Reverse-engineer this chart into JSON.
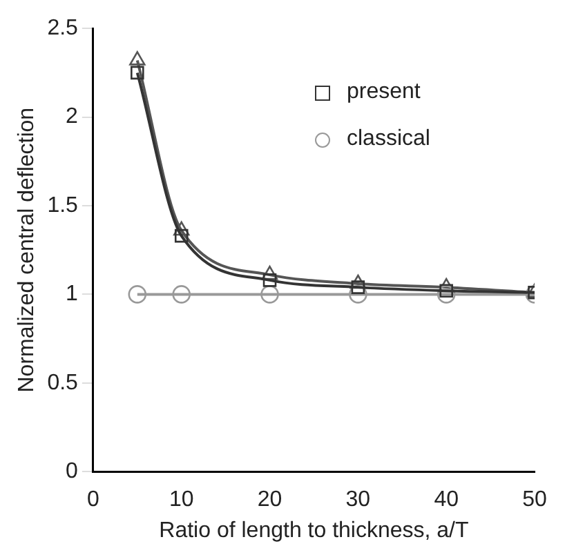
{
  "chart_data": {
    "type": "line",
    "xlabel": "Ratio of length to thickness, a/T",
    "ylabel": "Normalized central deflection",
    "x": [
      5,
      10,
      20,
      30,
      40,
      50
    ],
    "series": [
      {
        "name": "present",
        "color": "#333333",
        "marker": "square",
        "values": [
          2.25,
          1.33,
          1.08,
          1.04,
          1.02,
          1.01
        ]
      },
      {
        "name": "classical",
        "color": "#999999",
        "marker": "circle",
        "values": [
          1,
          1,
          1,
          1,
          1,
          1
        ]
      },
      {
        "color": "#555555",
        "marker": "triangle",
        "values": [
          2.32,
          1.36,
          1.11,
          1.06,
          1.04,
          1.01
        ]
      }
    ],
    "xlim": [
      0,
      50
    ],
    "xticks": [
      0,
      10,
      20,
      30,
      40,
      50
    ],
    "ylim": [
      0,
      2.5
    ],
    "yticks": [
      0,
      0.5,
      1,
      1.5,
      2,
      2.5
    ],
    "grid": false,
    "legend": "top right"
  }
}
